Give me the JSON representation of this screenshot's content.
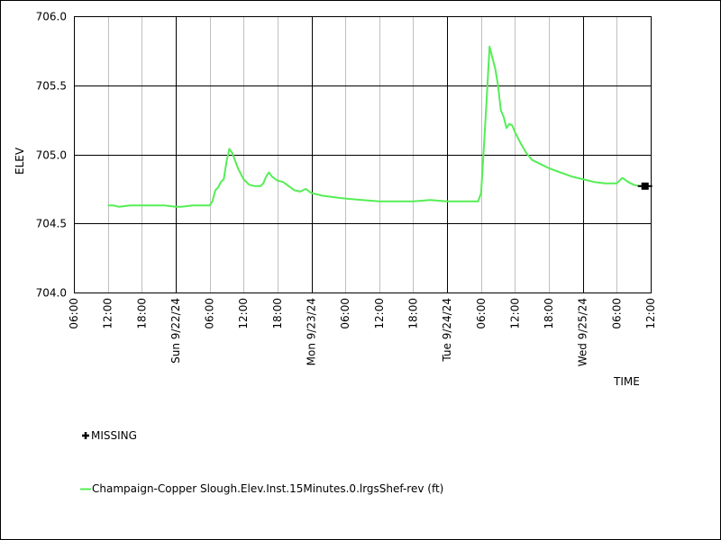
{
  "chart_data": {
    "type": "line",
    "title": "",
    "xlabel": "TIME",
    "ylabel": "ELEV",
    "ylim": [
      704.0,
      706.0
    ],
    "y_ticks": [
      "704.0",
      "704.5",
      "705.0",
      "705.5",
      "706.0"
    ],
    "xlim": [
      "2024-09-21 06:00",
      "2024-09-25 12:00"
    ],
    "x_ticks": [
      "06:00",
      "12:00",
      "18:00",
      "Sun 9/22/24",
      "06:00",
      "12:00",
      "18:00",
      "Mon 9/23/24",
      "06:00",
      "12:00",
      "18:00",
      "Tue 9/24/24",
      "06:00",
      "12:00",
      "18:00",
      "Wed 9/25/24",
      "06:00",
      "12:00"
    ],
    "grid": true,
    "legend_placement": "bottom",
    "series": [
      {
        "name": "Champaign-Copper Slough.Elev.Inst.15Minutes.0.lrgsShef-rev (ft)",
        "color": "#55ee55",
        "x": [
          "2024-09-21 12:00",
          "2024-09-21 13:00",
          "2024-09-21 14:00",
          "2024-09-21 16:00",
          "2024-09-21 18:00",
          "2024-09-21 20:00",
          "2024-09-21 22:00",
          "2024-09-22 00:00",
          "2024-09-22 01:00",
          "2024-09-22 03:00",
          "2024-09-22 05:00",
          "2024-09-22 06:00",
          "2024-09-22 06:30",
          "2024-09-22 07:00",
          "2024-09-22 07:30",
          "2024-09-22 08:00",
          "2024-09-22 08:30",
          "2024-09-22 09:00",
          "2024-09-22 09:30",
          "2024-09-22 10:00",
          "2024-09-22 11:00",
          "2024-09-22 12:00",
          "2024-09-22 13:00",
          "2024-09-22 14:00",
          "2024-09-22 15:00",
          "2024-09-22 15:30",
          "2024-09-22 16:00",
          "2024-09-22 16:30",
          "2024-09-22 17:00",
          "2024-09-22 18:00",
          "2024-09-22 19:00",
          "2024-09-22 20:00",
          "2024-09-22 21:00",
          "2024-09-22 22:00",
          "2024-09-22 23:00",
          "2024-09-23 00:00",
          "2024-09-23 02:00",
          "2024-09-23 04:00",
          "2024-09-23 06:00",
          "2024-09-23 09:00",
          "2024-09-23 12:00",
          "2024-09-23 15:00",
          "2024-09-23 18:00",
          "2024-09-23 21:00",
          "2024-09-24 00:00",
          "2024-09-24 03:00",
          "2024-09-24 05:30",
          "2024-09-24 06:00",
          "2024-09-24 06:30",
          "2024-09-24 07:00",
          "2024-09-24 07:30",
          "2024-09-24 08:00",
          "2024-09-24 08:30",
          "2024-09-24 09:00",
          "2024-09-24 09:30",
          "2024-09-24 10:00",
          "2024-09-24 10:30",
          "2024-09-24 11:00",
          "2024-09-24 11:30",
          "2024-09-24 12:00",
          "2024-09-24 13:00",
          "2024-09-24 14:00",
          "2024-09-24 15:00",
          "2024-09-24 16:00",
          "2024-09-24 17:00",
          "2024-09-24 18:00",
          "2024-09-24 20:00",
          "2024-09-24 22:00",
          "2024-09-25 00:00",
          "2024-09-25 02:00",
          "2024-09-25 04:00",
          "2024-09-25 05:00",
          "2024-09-25 06:00",
          "2024-09-25 07:00",
          "2024-09-25 08:00",
          "2024-09-25 09:00",
          "2024-09-25 10:00",
          "2024-09-25 11:00"
        ],
        "y": [
          704.63,
          704.63,
          704.62,
          704.63,
          704.63,
          704.63,
          704.63,
          704.62,
          704.62,
          704.63,
          704.63,
          704.63,
          704.66,
          704.74,
          704.76,
          704.8,
          704.82,
          704.95,
          705.04,
          705.01,
          704.9,
          704.82,
          704.78,
          704.77,
          704.77,
          704.79,
          704.84,
          704.87,
          704.84,
          704.81,
          704.8,
          704.77,
          704.74,
          704.73,
          704.75,
          704.72,
          704.7,
          704.69,
          704.68,
          704.67,
          704.66,
          704.66,
          704.66,
          704.67,
          704.66,
          704.66,
          704.66,
          704.72,
          705.05,
          705.4,
          705.78,
          705.7,
          705.62,
          705.5,
          705.32,
          705.27,
          705.19,
          705.22,
          705.21,
          705.16,
          705.08,
          705.01,
          704.96,
          704.94,
          704.92,
          704.9,
          704.87,
          704.84,
          704.82,
          704.8,
          704.79,
          704.79,
          704.79,
          704.83,
          704.8,
          704.78,
          704.77,
          704.77
        ]
      }
    ],
    "missing_marker": {
      "x": "2024-09-25 11:00",
      "y": 704.77
    }
  },
  "legend": {
    "missing_label": "MISSING",
    "series_label": "Champaign-Copper Slough.Elev.Inst.15Minutes.0.lrgsShef-rev (ft)"
  },
  "colors": {
    "series": "#55ee55",
    "major_grid": "#000000",
    "minor_grid": "#c0c0c0"
  }
}
